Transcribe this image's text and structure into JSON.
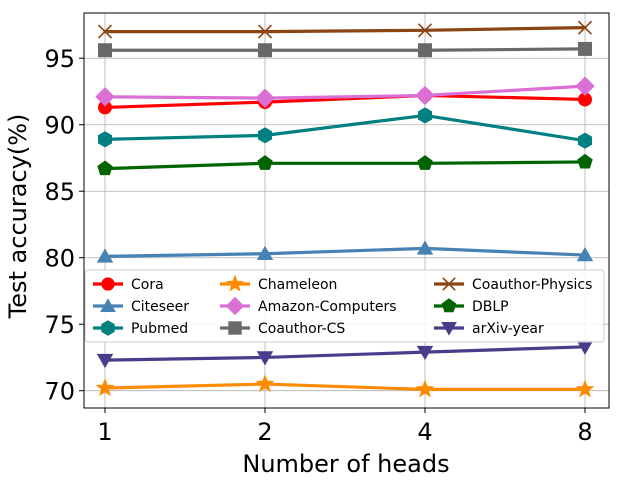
{
  "chart_data": {
    "type": "line",
    "xlabel": "Number of heads",
    "ylabel": "Test accuracy(%)",
    "categories": [
      "1",
      "2",
      "4",
      "8"
    ],
    "ylim": [
      68.7,
      98.4
    ],
    "yticks": [
      70,
      75,
      80,
      85,
      90,
      95
    ],
    "grid": true,
    "legend": {
      "placement": "center-bottom",
      "columns": 3
    },
    "series": [
      {
        "name": "Cora",
        "color": "#ff0000",
        "marker": "circle",
        "values": [
          91.3,
          91.7,
          92.2,
          91.9
        ]
      },
      {
        "name": "Citeseer",
        "color": "#4682b4",
        "marker": "triangle-up",
        "values": [
          80.1,
          80.3,
          80.7,
          80.2
        ]
      },
      {
        "name": "Pubmed",
        "color": "#008080",
        "marker": "hexagon",
        "values": [
          88.9,
          89.2,
          90.7,
          88.8
        ]
      },
      {
        "name": "Chameleon",
        "color": "#ff8c00",
        "marker": "star",
        "values": [
          70.2,
          70.5,
          70.1,
          70.1
        ]
      },
      {
        "name": "Amazon-Computers",
        "color": "#da70d6",
        "marker": "diamond",
        "values": [
          92.1,
          92.0,
          92.2,
          92.9
        ]
      },
      {
        "name": "Coauthor-CS",
        "color": "#696969",
        "marker": "square",
        "values": [
          95.6,
          95.6,
          95.6,
          95.7
        ]
      },
      {
        "name": "Coauthor-Physics",
        "color": "#8b4513",
        "marker": "x",
        "values": [
          97.0,
          97.0,
          97.1,
          97.3
        ]
      },
      {
        "name": "DBLP",
        "color": "#006400",
        "marker": "pentagon",
        "values": [
          86.7,
          87.1,
          87.1,
          87.2
        ]
      },
      {
        "name": "arXiv-year",
        "color": "#483d8b",
        "marker": "triangle-down",
        "values": [
          72.3,
          72.5,
          72.9,
          73.3
        ]
      }
    ]
  }
}
